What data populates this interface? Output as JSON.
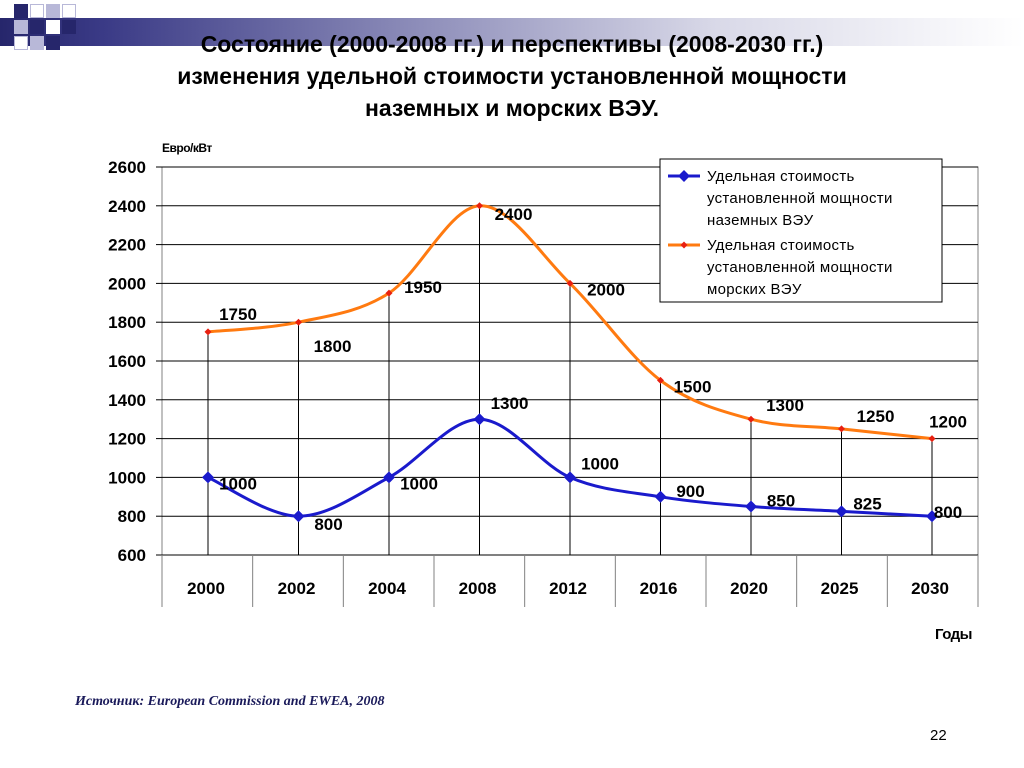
{
  "title": {
    "line1": "Состояние (2000-2008 гг.) и перспективы (2008-2030 гг.)",
    "line2": "изменения удельной стоимости установленной мощности",
    "line3": "наземных и морских ВЭУ."
  },
  "source": {
    "prefix": "Источник:",
    "text": "European Commission and EWEA, 2008"
  },
  "page_number": "22",
  "colors": {
    "decor_navy": "#26266b",
    "decor_light": "#b8b8d8",
    "onshore_series": "#1a1acc",
    "offshore_series": "#ff7a10",
    "offshore_marker": "#e82010"
  },
  "chart_data": {
    "type": "line",
    "ylabel": "Евро/кВт",
    "xlabel": "Годы",
    "categories": [
      "2000",
      "2002",
      "2004",
      "2008",
      "2012",
      "2016",
      "2020",
      "2025",
      "2030"
    ],
    "ylim": [
      600,
      2600
    ],
    "yticks": [
      600,
      800,
      1000,
      1200,
      1400,
      1600,
      1800,
      2000,
      2200,
      2400,
      2600
    ],
    "grid": "horizontal and vertical",
    "legend_position": "top-right",
    "series": [
      {
        "name": "Удельная стоимость установленной мощности наземных ВЭУ",
        "legend_lines": [
          "Удельная стоимость",
          "установленной мощности",
          "наземных ВЭУ"
        ],
        "values": [
          1000,
          800,
          1000,
          1300,
          1000,
          900,
          850,
          825,
          800
        ],
        "labels": [
          "1000",
          "800",
          "1000",
          "1300",
          "1000",
          "900",
          "850",
          "825",
          "800"
        ],
        "color": "#1a1acc",
        "marker": "diamond"
      },
      {
        "name": "Удельная стоимость установленной мощности морских ВЭУ",
        "legend_lines": [
          "Удельная стоимость",
          "установленной мощности",
          "морских ВЭУ"
        ],
        "values": [
          1750,
          1800,
          1950,
          2400,
          2000,
          1500,
          1300,
          1250,
          1200
        ],
        "labels": [
          "1750",
          "1800",
          "1950",
          "2400",
          "2000",
          "1500",
          "1300",
          "1250",
          "1200"
        ],
        "color": "#ff7a10",
        "marker": "diamond"
      }
    ]
  }
}
